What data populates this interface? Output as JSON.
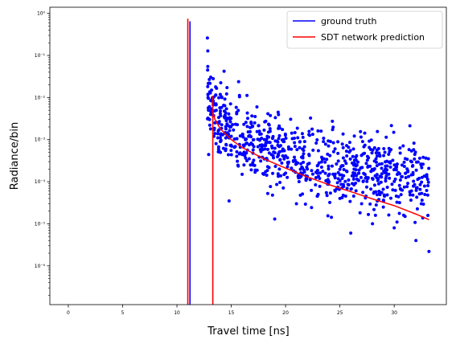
{
  "chart_data": {
    "type": "scatter",
    "title": "",
    "xlabel": "Travel time [ns]",
    "ylabel": "Radiance/bin",
    "xlim": [
      -1.7,
      34.8
    ],
    "ylim": [
      1.2e-07,
      1.4
    ],
    "yscale": "log",
    "xticks": [
      0,
      5,
      10,
      15,
      20,
      25,
      30
    ],
    "yticks": [
      {
        "value": 1e-06,
        "label": "10⁻⁶"
      },
      {
        "value": 1e-05,
        "label": "10⁻⁵"
      },
      {
        "value": 0.0001,
        "label": "10⁻⁴"
      },
      {
        "value": 0.001,
        "label": "10⁻³"
      },
      {
        "value": 0.01,
        "label": "10⁻²"
      },
      {
        "value": 0.1,
        "label": "10⁻¹"
      },
      {
        "value": 1,
        "label": "10⁰"
      }
    ],
    "grid": false,
    "legend_position": "top-right",
    "series": [
      {
        "name": "ground truth",
        "color": "#0000ff",
        "kind": "scatter+spike",
        "spike": {
          "x": 11.2,
          "y": 0.65
        },
        "scatter_summary": {
          "x_range": [
            12.8,
            33.2
          ],
          "approx_points": 850,
          "decay_model": "y ≈ 0.0045 · (x − 12.5)^(−1.2) with log-normal scatter"
        },
        "points": [
          [
            12.9,
            0.005
          ],
          [
            13.0,
            0.003
          ],
          [
            13.1,
            0.0018
          ],
          [
            13.2,
            0.0042
          ],
          [
            13.4,
            0.0012
          ],
          [
            13.5,
            0.0025
          ],
          [
            13.6,
            0.0008
          ],
          [
            13.8,
            0.0016
          ],
          [
            14.0,
            0.0009
          ],
          [
            14.2,
            0.0013
          ],
          [
            14.5,
            0.0006
          ],
          [
            14.8,
            3.5e-05
          ],
          [
            15.0,
            0.0012
          ],
          [
            15.5,
            0.0004
          ],
          [
            16.0,
            0.00015
          ],
          [
            16.6,
            0.0012
          ],
          [
            17.0,
            0.00025
          ],
          [
            18.0,
            0.00015
          ],
          [
            19.0,
            1.3e-05
          ],
          [
            20.0,
            0.00016
          ],
          [
            21.0,
            3e-05
          ],
          [
            22.0,
            0.0002
          ],
          [
            23.0,
            5e-05
          ],
          [
            24.0,
            0.0001
          ],
          [
            25.0,
            4e-05
          ],
          [
            26.0,
            6e-06
          ],
          [
            27.0,
            3e-05
          ],
          [
            28.0,
            1e-05
          ],
          [
            29.0,
            2.5e-05
          ],
          [
            29.7,
            0.00058
          ],
          [
            30.0,
            8e-06
          ],
          [
            31.0,
            1.5e-05
          ],
          [
            32.0,
            4e-06
          ],
          [
            33.0,
            0.00013
          ],
          [
            33.2,
            2.2e-06
          ]
        ]
      },
      {
        "name": "SDT network prediction",
        "color": "#ff0000",
        "kind": "line",
        "spikes": [
          {
            "x": 11.0,
            "y": 0.75
          },
          {
            "x": 13.3,
            "y": 0.011
          }
        ],
        "decay": {
          "x": [
            13.3,
            13.5,
            14,
            15,
            16,
            18,
            20,
            22,
            24,
            26,
            28,
            30,
            32,
            33.2
          ],
          "y": [
            0.0045,
            0.003,
            0.0018,
            0.001,
            0.00065,
            0.00035,
            0.00021,
            0.00013,
            8.5e-05,
            5.8e-05,
            3.9e-05,
            2.7e-05,
            1.7e-05,
            1.25e-05
          ]
        }
      }
    ]
  }
}
